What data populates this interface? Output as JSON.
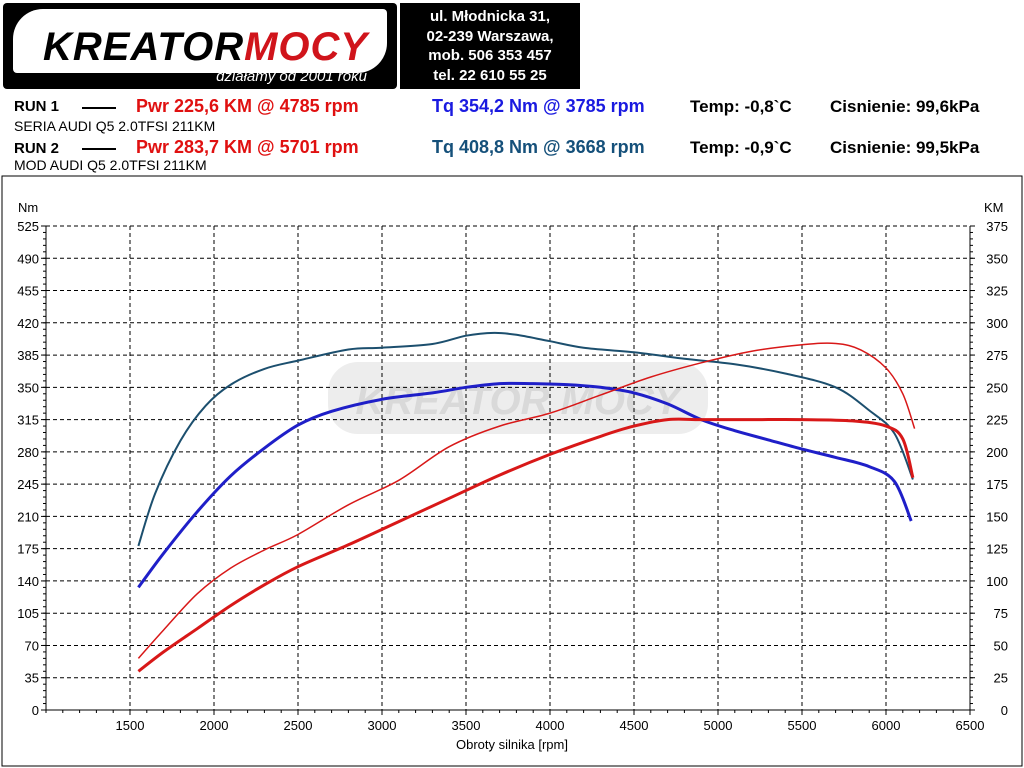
{
  "header": {
    "logo_text_black": "KREATOR",
    "logo_text_red": "MOCY",
    "logo_tagline": "działamy od 2001 roku",
    "address": [
      "ul. Młodnicka 31,",
      "02-239  Warszawa,",
      "mob.  506 353 457",
      "tel.  22 610 55 25"
    ]
  },
  "runs": [
    {
      "label": "RUN 1",
      "pwr": "Pwr  225,6 KM @ 4785 rpm",
      "tq": "Tq 354,2 Nm @ 3785 rpm",
      "temp": "Temp: -0,8`C",
      "pressure": "Cisnienie: 99,6kPa",
      "sub": "SERIA  AUDI Q5 2.0TFSI  211KM"
    },
    {
      "label": "RUN 2",
      "pwr": "Pwr  283,7 KM @ 5701 rpm",
      "tq": "Tq 408,8 Nm @ 3668 rpm",
      "temp": "Temp: -0,9`C",
      "pressure": "Cisnienie: 99,5kPa",
      "sub": "MOD AUDI Q5 2.0TFSI 211KM"
    }
  ],
  "chart_data": {
    "type": "line",
    "xlabel": "Obroty silnika [rpm]",
    "ylabel_left": "Nm",
    "ylabel_right": "KM",
    "xlim": [
      1000,
      6500
    ],
    "xticks": [
      1500,
      2000,
      2500,
      3000,
      3500,
      4000,
      4500,
      5000,
      5500,
      6000,
      6500
    ],
    "ylim_left": [
      0,
      525
    ],
    "yticks_left": [
      0,
      35,
      70,
      105,
      140,
      175,
      210,
      245,
      280,
      315,
      350,
      385,
      420,
      455,
      490,
      525
    ],
    "ylim_right": [
      0,
      375
    ],
    "yticks_right": [
      0,
      25,
      50,
      75,
      100,
      125,
      150,
      175,
      200,
      225,
      250,
      275,
      300,
      325,
      350,
      375
    ],
    "grid": true,
    "watermark": "KREATOR MOCY",
    "series": [
      {
        "axis": "left",
        "color": "#1f1fc8",
        "width": 3,
        "x": [
          1550,
          1700,
          1900,
          2100,
          2300,
          2500,
          2700,
          3000,
          3300,
          3500,
          3700,
          3900,
          4100,
          4300,
          4500,
          4700,
          4900,
          5100,
          5300,
          5500,
          5700,
          5900,
          6050,
          6150
        ],
        "y": [
          133,
          170,
          215,
          254,
          284,
          309,
          324,
          337,
          344,
          350,
          354,
          354,
          353,
          350,
          344,
          332,
          315,
          303,
          293,
          283,
          274,
          264,
          248,
          205
        ]
      },
      {
        "axis": "left",
        "color": "#1c4f6e",
        "width": 2,
        "x": [
          1550,
          1650,
          1800,
          1950,
          2100,
          2300,
          2500,
          2800,
          3000,
          3300,
          3500,
          3668,
          3800,
          4000,
          4200,
          4500,
          4800,
          5100,
          5400,
          5700,
          5900,
          6050,
          6160
        ],
        "y": [
          178,
          235,
          292,
          330,
          353,
          370,
          379,
          391,
          393,
          397,
          406,
          409,
          407,
          400,
          393,
          388,
          381,
          375,
          365,
          350,
          325,
          300,
          250
        ]
      },
      {
        "axis": "right",
        "color": "#d81818",
        "width": 3,
        "x": [
          1550,
          1700,
          1900,
          2100,
          2300,
          2500,
          2800,
          3100,
          3400,
          3700,
          4000,
          4300,
          4500,
          4700,
          4900,
          5200,
          5500,
          5800,
          6000,
          6100,
          6160
        ],
        "y": [
          30,
          45,
          63,
          81,
          97,
          111,
          128,
          146,
          164,
          182,
          198,
          212,
          220,
          225,
          225,
          225,
          225,
          224,
          220,
          210,
          180
        ]
      },
      {
        "axis": "right",
        "color": "#d81818",
        "width": 1.5,
        "x": [
          1550,
          1700,
          1900,
          2100,
          2300,
          2500,
          2800,
          3100,
          3400,
          3700,
          4000,
          4300,
          4600,
          4900,
          5200,
          5500,
          5701,
          5850,
          6000,
          6100,
          6170
        ],
        "y": [
          40,
          62,
          90,
          110,
          124,
          136,
          159,
          178,
          204,
          220,
          230,
          244,
          258,
          269,
          278,
          283,
          284,
          279,
          265,
          245,
          218
        ]
      }
    ]
  }
}
